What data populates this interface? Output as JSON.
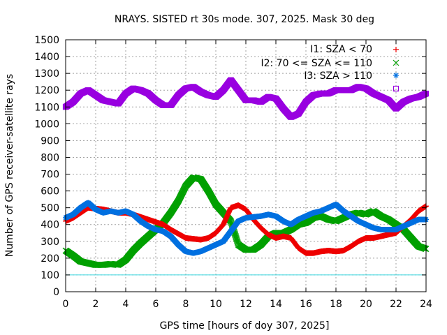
{
  "chart_data": {
    "type": "scatter",
    "title": "NRAYS. SISTED rt 30s mode. 307, 2025. Mask 30 deg",
    "xlabel": "GPS time [hours of doy 307, 2025]",
    "ylabel": "Number of GPS receiver-satellite rays",
    "xlim": [
      0,
      24
    ],
    "ylim": [
      0,
      1500
    ],
    "xticks": [
      "0",
      "2",
      "4",
      "6",
      "8",
      "10",
      "12",
      "14",
      "16",
      "18",
      "20",
      "22",
      "24"
    ],
    "yticks": [
      "0",
      "100",
      "200",
      "300",
      "400",
      "500",
      "600",
      "700",
      "800",
      "900",
      "1000",
      "1100",
      "1200",
      "1300",
      "1400",
      "1500"
    ],
    "grid": true,
    "legend_position": "top-right",
    "reference_line": {
      "y": 100,
      "color": "#3fd8e0"
    },
    "series": [
      {
        "name": "I1: SZA < 70",
        "marker": "+",
        "color": "#ee0000",
        "x": [
          0,
          0.5,
          1,
          1.5,
          2,
          2.5,
          3,
          3.5,
          4,
          4.5,
          5,
          5.5,
          6,
          6.5,
          7,
          7.5,
          8,
          8.5,
          9,
          9.5,
          10,
          10.5,
          11,
          11.5,
          12,
          12.5,
          13,
          13.5,
          14,
          14.5,
          15,
          15.5,
          16,
          16.5,
          17,
          17.5,
          18,
          18.5,
          19,
          19.5,
          20,
          20.5,
          21,
          21.5,
          22,
          22.5,
          23,
          23.5,
          24
        ],
        "y": [
          420,
          440,
          470,
          500,
          495,
          490,
          480,
          470,
          470,
          460,
          445,
          430,
          415,
          400,
          370,
          345,
          320,
          315,
          310,
          320,
          350,
          400,
          500,
          515,
          490,
          430,
          380,
          340,
          320,
          330,
          320,
          260,
          230,
          230,
          240,
          245,
          240,
          245,
          270,
          300,
          320,
          320,
          330,
          340,
          350,
          390,
          430,
          480,
          510
        ]
      },
      {
        "name": "I2: 70 <= SZA <= 110",
        "marker": "x",
        "color": "#00a000",
        "x": [
          0,
          0.5,
          1,
          1.5,
          2,
          2.5,
          3,
          3.5,
          4,
          4.5,
          5,
          5.5,
          6,
          6.5,
          7,
          7.5,
          8,
          8.5,
          9,
          9.5,
          10,
          10.5,
          11,
          11.5,
          12,
          12.5,
          13,
          13.5,
          14,
          14.5,
          15,
          15.5,
          16,
          16.5,
          17,
          17.5,
          18,
          18.5,
          19,
          19.5,
          20,
          20.5,
          21,
          21.5,
          22,
          22.5,
          23,
          23.5,
          24
        ],
        "y": [
          245,
          215,
          180,
          170,
          160,
          160,
          165,
          160,
          190,
          245,
          290,
          330,
          370,
          410,
          470,
          540,
          630,
          680,
          670,
          600,
          520,
          470,
          420,
          280,
          250,
          250,
          280,
          330,
          350,
          350,
          370,
          400,
          410,
          440,
          450,
          430,
          420,
          440,
          460,
          470,
          460,
          480,
          450,
          430,
          400,
          370,
          320,
          270,
          255
        ]
      },
      {
        "name": "I3: SZA > 110",
        "marker": "*",
        "color": "#0070e0",
        "x": [
          0,
          0.5,
          1,
          1.5,
          2,
          2.5,
          3,
          3.5,
          4,
          4.5,
          5,
          5.5,
          6,
          6.5,
          7,
          7.5,
          8,
          8.5,
          9,
          9.5,
          10,
          10.5,
          11,
          11.5,
          12,
          12.5,
          13,
          13.5,
          14,
          14.5,
          15,
          15.5,
          16,
          16.5,
          17,
          17.5,
          18,
          18.5,
          19,
          19.5,
          20,
          20.5,
          21,
          21.5,
          22,
          22.5,
          23,
          23.5,
          24
        ],
        "y": [
          440,
          460,
          500,
          530,
          490,
          470,
          480,
          470,
          480,
          460,
          420,
          390,
          370,
          360,
          330,
          280,
          240,
          230,
          240,
          260,
          280,
          300,
          360,
          420,
          440,
          445,
          450,
          460,
          450,
          420,
          400,
          430,
          450,
          470,
          480,
          500,
          520,
          480,
          450,
          420,
          400,
          380,
          370,
          370,
          370,
          390,
          410,
          430,
          430
        ]
      },
      {
        "name": "",
        "marker": "square",
        "color": "#9900e0",
        "x": [
          0,
          0.5,
          1,
          1.5,
          2,
          2.5,
          3,
          3.5,
          4,
          4.5,
          5,
          5.5,
          6,
          6.5,
          7,
          7.5,
          8,
          8.5,
          9,
          9.5,
          10,
          10.5,
          11,
          11.5,
          12,
          12.5,
          13,
          13.5,
          14,
          14.5,
          15,
          15.5,
          16,
          16.5,
          17,
          17.5,
          18,
          18.5,
          19,
          19.5,
          20,
          20.5,
          21,
          21.5,
          22,
          22.5,
          23,
          23.5,
          24
        ],
        "y": [
          1100,
          1130,
          1180,
          1200,
          1170,
          1140,
          1130,
          1120,
          1180,
          1210,
          1200,
          1180,
          1140,
          1110,
          1110,
          1170,
          1210,
          1220,
          1190,
          1170,
          1160,
          1200,
          1260,
          1200,
          1140,
          1140,
          1130,
          1160,
          1150,
          1090,
          1040,
          1060,
          1130,
          1170,
          1180,
          1180,
          1200,
          1200,
          1200,
          1220,
          1210,
          1180,
          1160,
          1140,
          1090,
          1130,
          1150,
          1160,
          1180
        ]
      }
    ]
  }
}
